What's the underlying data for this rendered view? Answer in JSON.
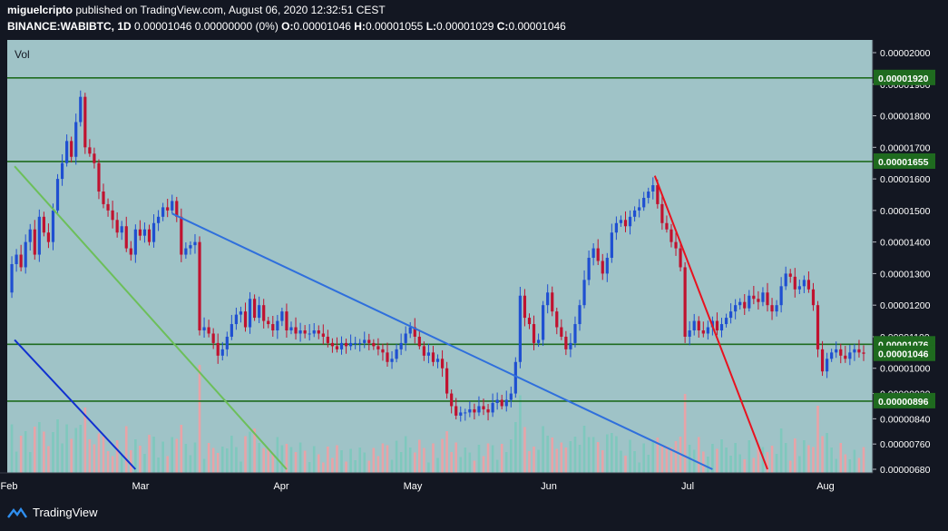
{
  "header": {
    "author": "miguelcripto",
    "published": "published on TradingView.com, August 06, 2020 12:32:51 CEST",
    "symbol": "BINANCE:WABIBTC, 1D",
    "quote": "0.00001046 0.00000000 (0%)",
    "o_label": "O:",
    "o_value": "0.00001046",
    "h_label": "H:",
    "h_value": "0.00001055",
    "l_label": "L:",
    "l_value": "0.00001029",
    "c_label": "C:",
    "c_value": "0.00001046"
  },
  "footer": {
    "brand": "TradingView"
  },
  "chart_data": {
    "type": "candlestick",
    "panel_label": "Vol",
    "colors": {
      "background": "#9fc3c7",
      "up": "#1f4fd1",
      "down": "#c0122f",
      "vol_up": "#7fc8bd",
      "vol_down": "#e8a3a7",
      "hline": "#1f6b1f",
      "grid_text": "#ffffff"
    },
    "y_ticks": [
      "0.00002000",
      "0.00001900",
      "0.00001800",
      "0.00001700",
      "0.00001600",
      "0.00001500",
      "0.00001400",
      "0.00001300",
      "0.00001200",
      "0.00001100",
      "0.00001000",
      "0.00000920",
      "0.00000840",
      "0.00000760",
      "0.00000680"
    ],
    "x_ticks": [
      "Feb",
      "Mar",
      "Apr",
      "May",
      "Jun",
      "Jul",
      "Aug"
    ],
    "horizontal_levels": [
      "0.00001920",
      "0.00001655",
      "0.00001076",
      "0.00000896"
    ],
    "last_price_label": "0.00001046",
    "price_series": [
      [
        0,
        1240
      ],
      [
        5,
        1330
      ],
      [
        10,
        1360
      ],
      [
        15,
        1320
      ],
      [
        20,
        1400
      ],
      [
        25,
        1440
      ],
      [
        30,
        1360
      ],
      [
        35,
        1480
      ],
      [
        40,
        1430
      ],
      [
        45,
        1400
      ],
      [
        50,
        1500
      ],
      [
        55,
        1600
      ],
      [
        60,
        1650
      ],
      [
        65,
        1720
      ],
      [
        70,
        1670
      ],
      [
        75,
        1780
      ],
      [
        80,
        1860
      ],
      [
        85,
        1700
      ],
      [
        90,
        1680
      ],
      [
        95,
        1650
      ],
      [
        100,
        1560
      ],
      [
        105,
        1520
      ],
      [
        110,
        1500
      ],
      [
        115,
        1470
      ],
      [
        120,
        1430
      ],
      [
        125,
        1450
      ],
      [
        130,
        1380
      ],
      [
        135,
        1360
      ],
      [
        140,
        1440
      ],
      [
        145,
        1420
      ],
      [
        150,
        1440
      ],
      [
        155,
        1400
      ],
      [
        160,
        1460
      ],
      [
        165,
        1480
      ],
      [
        170,
        1510
      ],
      [
        175,
        1500
      ],
      [
        180,
        1530
      ],
      [
        185,
        1480
      ],
      [
        190,
        1360
      ],
      [
        195,
        1380
      ],
      [
        200,
        1390
      ],
      [
        205,
        1400
      ],
      [
        210,
        1120
      ],
      [
        215,
        1130
      ],
      [
        220,
        1110
      ],
      [
        225,
        1080
      ],
      [
        230,
        1040
      ],
      [
        235,
        1060
      ],
      [
        240,
        1100
      ],
      [
        245,
        1140
      ],
      [
        250,
        1170
      ],
      [
        255,
        1180
      ],
      [
        260,
        1130
      ],
      [
        265,
        1220
      ],
      [
        270,
        1160
      ],
      [
        275,
        1200
      ],
      [
        280,
        1150
      ],
      [
        285,
        1140
      ],
      [
        290,
        1120
      ],
      [
        295,
        1150
      ],
      [
        300,
        1180
      ],
      [
        305,
        1120
      ],
      [
        310,
        1130
      ],
      [
        315,
        1110
      ],
      [
        320,
        1120
      ],
      [
        325,
        1110
      ],
      [
        330,
        1110
      ],
      [
        335,
        1120
      ],
      [
        340,
        1110
      ],
      [
        345,
        1100
      ],
      [
        350,
        1080
      ],
      [
        355,
        1070
      ],
      [
        360,
        1060
      ],
      [
        365,
        1080
      ],
      [
        370,
        1070
      ],
      [
        375,
        1080
      ],
      [
        380,
        1080
      ],
      [
        385,
        1080
      ],
      [
        390,
        1090
      ],
      [
        395,
        1080
      ],
      [
        400,
        1070
      ],
      [
        405,
        1060
      ],
      [
        410,
        1050
      ],
      [
        415,
        1020
      ],
      [
        420,
        1030
      ],
      [
        425,
        1060
      ],
      [
        430,
        1080
      ],
      [
        435,
        1110
      ],
      [
        440,
        1130
      ],
      [
        445,
        1100
      ],
      [
        450,
        1070
      ],
      [
        455,
        1040
      ],
      [
        460,
        1050
      ],
      [
        465,
        1020
      ],
      [
        470,
        1030
      ],
      [
        475,
        1000
      ],
      [
        480,
        920
      ],
      [
        485,
        880
      ],
      [
        490,
        850
      ],
      [
        495,
        860
      ],
      [
        500,
        860
      ],
      [
        505,
        870
      ],
      [
        510,
        860
      ],
      [
        515,
        880
      ],
      [
        520,
        870
      ],
      [
        525,
        860
      ],
      [
        530,
        890
      ],
      [
        535,
        900
      ],
      [
        540,
        880
      ],
      [
        545,
        900
      ],
      [
        550,
        920
      ],
      [
        555,
        1020
      ],
      [
        560,
        1230
      ],
      [
        565,
        1160
      ],
      [
        570,
        1140
      ],
      [
        575,
        1080
      ],
      [
        580,
        1090
      ],
      [
        585,
        1200
      ],
      [
        590,
        1240
      ],
      [
        595,
        1180
      ],
      [
        600,
        1130
      ],
      [
        605,
        1100
      ],
      [
        610,
        1060
      ],
      [
        615,
        1080
      ],
      [
        620,
        1140
      ],
      [
        625,
        1200
      ],
      [
        630,
        1280
      ],
      [
        635,
        1350
      ],
      [
        640,
        1380
      ],
      [
        645,
        1340
      ],
      [
        650,
        1300
      ],
      [
        655,
        1350
      ],
      [
        660,
        1430
      ],
      [
        665,
        1460
      ],
      [
        670,
        1470
      ],
      [
        675,
        1450
      ],
      [
        680,
        1480
      ],
      [
        685,
        1500
      ],
      [
        690,
        1510
      ],
      [
        695,
        1540
      ],
      [
        700,
        1560
      ],
      [
        705,
        1580
      ],
      [
        710,
        1520
      ],
      [
        715,
        1460
      ],
      [
        720,
        1440
      ],
      [
        725,
        1400
      ],
      [
        730,
        1380
      ],
      [
        735,
        1320
      ],
      [
        740,
        1100
      ],
      [
        745,
        1120
      ],
      [
        750,
        1150
      ],
      [
        755,
        1120
      ],
      [
        760,
        1110
      ],
      [
        765,
        1130
      ],
      [
        770,
        1150
      ],
      [
        775,
        1120
      ],
      [
        780,
        1140
      ],
      [
        785,
        1160
      ],
      [
        790,
        1180
      ],
      [
        795,
        1200
      ],
      [
        800,
        1210
      ],
      [
        805,
        1190
      ],
      [
        810,
        1230
      ],
      [
        815,
        1220
      ],
      [
        820,
        1210
      ],
      [
        825,
        1240
      ],
      [
        830,
        1200
      ],
      [
        835,
        1180
      ],
      [
        840,
        1200
      ],
      [
        845,
        1260
      ],
      [
        850,
        1300
      ],
      [
        855,
        1290
      ],
      [
        860,
        1250
      ],
      [
        865,
        1260
      ],
      [
        870,
        1280
      ],
      [
        875,
        1250
      ],
      [
        880,
        1200
      ],
      [
        885,
        1060
      ],
      [
        890,
        990
      ],
      [
        895,
        1030
      ],
      [
        900,
        1050
      ],
      [
        905,
        1060
      ],
      [
        910,
        1040
      ],
      [
        915,
        1030
      ],
      [
        920,
        1050
      ],
      [
        925,
        1060
      ],
      [
        930,
        1050
      ],
      [
        935,
        1046
      ]
    ],
    "drawn_lines": [
      {
        "color": "#2f6fdc",
        "from": [
          180,
          1490
        ],
        "to": [
          770,
          680
        ]
      },
      {
        "color": "#6cbf5a",
        "from": [
          8,
          1640
        ],
        "to": [
          305,
          680
        ]
      },
      {
        "color": "#1030d0",
        "from": [
          8,
          1090
        ],
        "to": [
          140,
          680
        ]
      },
      {
        "color": "#e8121f",
        "from": [
          707,
          1610
        ],
        "to": [
          830,
          680
        ]
      }
    ]
  }
}
